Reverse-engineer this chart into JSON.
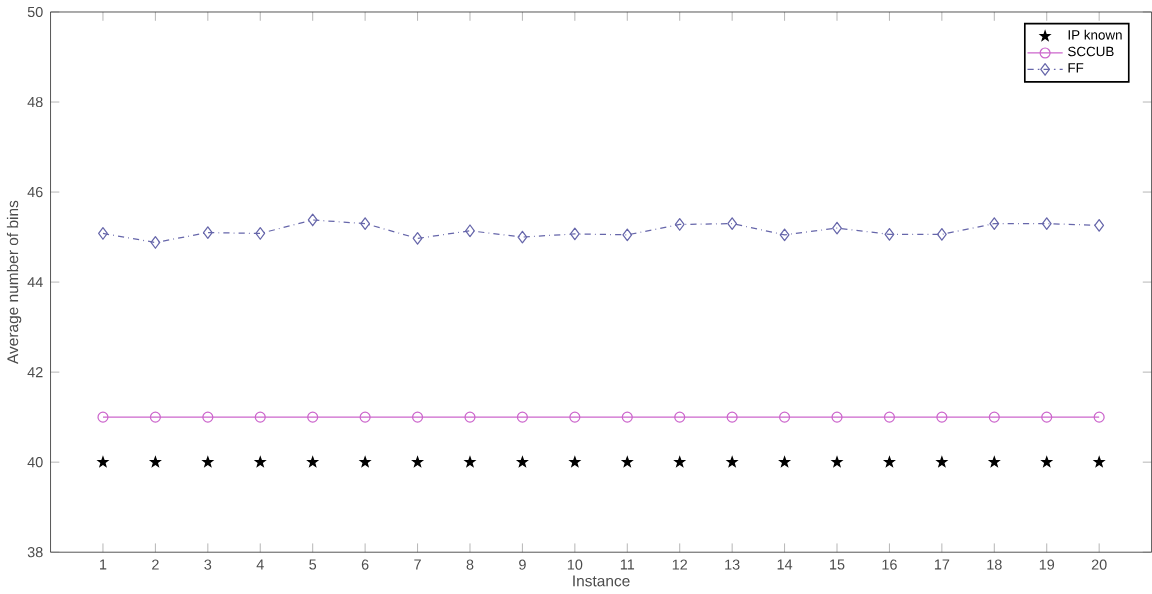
{
  "chart_data": {
    "type": "line",
    "xlabel": "Instance",
    "ylabel": "Average number of bins",
    "x": [
      1,
      2,
      3,
      4,
      5,
      6,
      7,
      8,
      9,
      10,
      11,
      12,
      13,
      14,
      15,
      16,
      17,
      18,
      19,
      20
    ],
    "xlim": [
      0,
      21
    ],
    "xticks": [
      1,
      2,
      3,
      4,
      5,
      6,
      7,
      8,
      9,
      10,
      11,
      12,
      13,
      14,
      15,
      16,
      17,
      18,
      19,
      20
    ],
    "ylim": [
      38,
      50
    ],
    "yticks": [
      38,
      40,
      42,
      44,
      46,
      48,
      50
    ],
    "grid": false,
    "legend": "top right",
    "series": [
      {
        "name": "IP known",
        "type": "scatter",
        "color": "#000000",
        "marker": "star",
        "values": [
          40,
          40,
          40,
          40,
          40,
          40,
          40,
          40,
          40,
          40,
          40,
          40,
          40,
          40,
          40,
          40,
          40,
          40,
          40,
          40
        ]
      },
      {
        "name": "SCCUB",
        "color": "#cc66cc",
        "marker": "circle",
        "line_style": "solid",
        "values": [
          41,
          41,
          41,
          41,
          41,
          41,
          41,
          41,
          41,
          41,
          41,
          41,
          41,
          41,
          41,
          41,
          41,
          41,
          41,
          41
        ]
      },
      {
        "name": "FF",
        "color": "#6666aa",
        "marker": "diamond",
        "line_style": "dashdot",
        "values": [
          45.08,
          44.88,
          45.1,
          45.08,
          45.38,
          45.3,
          44.97,
          45.14,
          45.0,
          45.07,
          45.05,
          45.28,
          45.3,
          45.05,
          45.2,
          45.06,
          45.06,
          45.3,
          45.3,
          45.26
        ]
      }
    ]
  }
}
